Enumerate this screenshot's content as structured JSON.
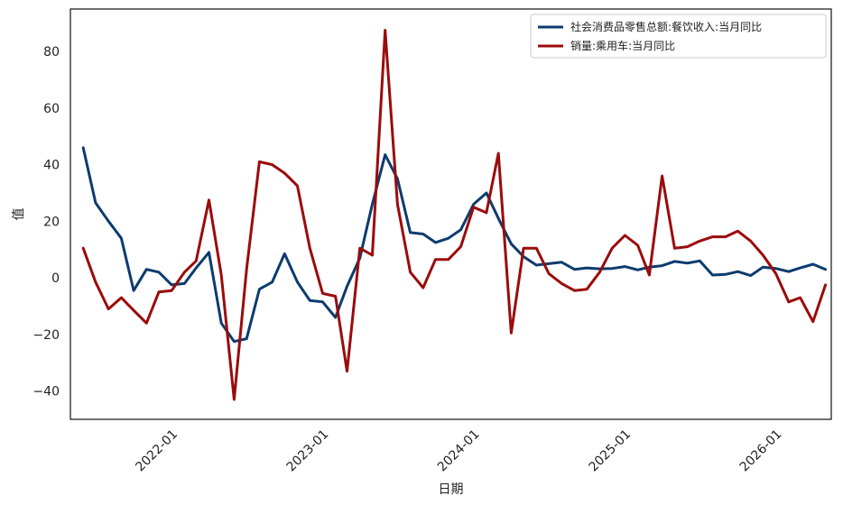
{
  "chart_data": {
    "type": "line",
    "title": "",
    "xlabel": "日期",
    "ylabel": "值",
    "ylim": [
      -50,
      95
    ],
    "xlim": [
      "2021-05-01",
      "2026-05-15"
    ],
    "yticks": [
      -40,
      -20,
      0,
      20,
      40,
      60,
      80
    ],
    "xticks": [
      "2022-01",
      "2023-01",
      "2024-01",
      "2025-01",
      "2026-01"
    ],
    "grid": false,
    "legend_position": "top-right",
    "series": [
      {
        "name": "社会消费品零售总额:餐饮收入:当月同比",
        "color": "#0d3b6e",
        "points": [
          [
            "2021-06",
            46
          ],
          [
            "2021-07",
            26.5
          ],
          [
            "2021-08",
            20
          ],
          [
            "2021-09",
            14
          ],
          [
            "2021-10",
            -4.5
          ],
          [
            "2021-11",
            3
          ],
          [
            "2021-12",
            2
          ],
          [
            "2022-01",
            -2.5
          ],
          [
            "2022-02",
            -2
          ],
          [
            "2022-03",
            3.5
          ],
          [
            "2022-04",
            9
          ],
          [
            "2022-05",
            -16
          ],
          [
            "2022-06",
            -22.5
          ],
          [
            "2022-07",
            -21.5
          ],
          [
            "2022-08",
            -4
          ],
          [
            "2022-09",
            -1.5
          ],
          [
            "2022-10",
            8.5
          ],
          [
            "2022-11",
            -1.5
          ],
          [
            "2022-12",
            -8
          ],
          [
            "2023-01",
            -8.5
          ],
          [
            "2023-02",
            -14
          ],
          [
            "2023-03",
            -3
          ],
          [
            "2023-04",
            7
          ],
          [
            "2023-05",
            26
          ],
          [
            "2023-06",
            43.5
          ],
          [
            "2023-07",
            35
          ],
          [
            "2023-08",
            16
          ],
          [
            "2023-09",
            15.5
          ],
          [
            "2023-10",
            12.5
          ],
          [
            "2023-11",
            14
          ],
          [
            "2023-12",
            17
          ],
          [
            "2024-01",
            26
          ],
          [
            "2024-02",
            30
          ],
          [
            "2024-03",
            21
          ],
          [
            "2024-04",
            12
          ],
          [
            "2024-05",
            7.5
          ],
          [
            "2024-06",
            4.5
          ],
          [
            "2024-07",
            5
          ],
          [
            "2024-08",
            5.5
          ],
          [
            "2024-09",
            3
          ],
          [
            "2024-10",
            3.5
          ],
          [
            "2024-11",
            3.2
          ],
          [
            "2024-12",
            3.3
          ],
          [
            "2025-01",
            4
          ],
          [
            "2025-02",
            2.8
          ],
          [
            "2025-03",
            3.8
          ],
          [
            "2025-04",
            4.3
          ],
          [
            "2025-05",
            5.8
          ],
          [
            "2025-06",
            5.2
          ],
          [
            "2025-07",
            6
          ],
          [
            "2025-08",
            1
          ],
          [
            "2025-09",
            1.2
          ],
          [
            "2025-10",
            2.2
          ],
          [
            "2025-11",
            0.8
          ],
          [
            "2025-12",
            3.8
          ],
          [
            "2026-01",
            3.3
          ],
          [
            "2026-02",
            2.2
          ],
          [
            "2026-03",
            3.5
          ],
          [
            "2026-04",
            4.8
          ],
          [
            "2026-05",
            3
          ]
        ]
      },
      {
        "name": "销量:乘用车:当月同比",
        "color": "#9b0b0b",
        "points": [
          [
            "2021-06",
            10.5
          ],
          [
            "2021-07",
            -1.5
          ],
          [
            "2021-08",
            -11
          ],
          [
            "2021-09",
            -7
          ],
          [
            "2021-10",
            -11.5
          ],
          [
            "2021-11",
            -16
          ],
          [
            "2021-12",
            -5
          ],
          [
            "2022-01",
            -4.5
          ],
          [
            "2022-02",
            2
          ],
          [
            "2022-03",
            6
          ],
          [
            "2022-04",
            27.5
          ],
          [
            "2022-05",
            1
          ],
          [
            "2022-06",
            -43
          ],
          [
            "2022-07",
            3
          ],
          [
            "2022-08",
            41
          ],
          [
            "2022-09",
            40
          ],
          [
            "2022-10",
            37
          ],
          [
            "2022-11",
            32.5
          ],
          [
            "2022-12",
            10.5
          ],
          [
            "2023-01",
            -5.5
          ],
          [
            "2023-02",
            -6.5
          ],
          [
            "2023-03",
            -33
          ],
          [
            "2023-04",
            10.5
          ],
          [
            "2023-05",
            8
          ],
          [
            "2023-06",
            87.5
          ],
          [
            "2023-07",
            26
          ],
          [
            "2023-08",
            2
          ],
          [
            "2023-09",
            -3.5
          ],
          [
            "2023-10",
            6.5
          ],
          [
            "2023-11",
            6.5
          ],
          [
            "2023-12",
            11
          ],
          [
            "2024-01",
            25
          ],
          [
            "2024-02",
            23
          ],
          [
            "2024-03",
            44
          ],
          [
            "2024-04",
            -19.5
          ],
          [
            "2024-05",
            10.5
          ],
          [
            "2024-06",
            10.5
          ],
          [
            "2024-07",
            1.5
          ],
          [
            "2024-08",
            -2
          ],
          [
            "2024-09",
            -4.5
          ],
          [
            "2024-10",
            -4
          ],
          [
            "2024-11",
            2
          ],
          [
            "2024-12",
            10.5
          ],
          [
            "2025-01",
            15
          ],
          [
            "2025-02",
            11.5
          ],
          [
            "2025-03",
            1
          ],
          [
            "2025-04",
            36
          ],
          [
            "2025-05",
            10.5
          ],
          [
            "2025-06",
            11
          ],
          [
            "2025-07",
            13
          ],
          [
            "2025-08",
            14.5
          ],
          [
            "2025-09",
            14.5
          ],
          [
            "2025-10",
            16.5
          ],
          [
            "2025-11",
            13
          ],
          [
            "2025-12",
            8
          ],
          [
            "2026-01",
            1.5
          ],
          [
            "2026-02",
            -8.5
          ],
          [
            "2026-03",
            -7
          ],
          [
            "2026-04",
            -15.5
          ],
          [
            "2026-05",
            -2.5
          ]
        ]
      }
    ]
  }
}
